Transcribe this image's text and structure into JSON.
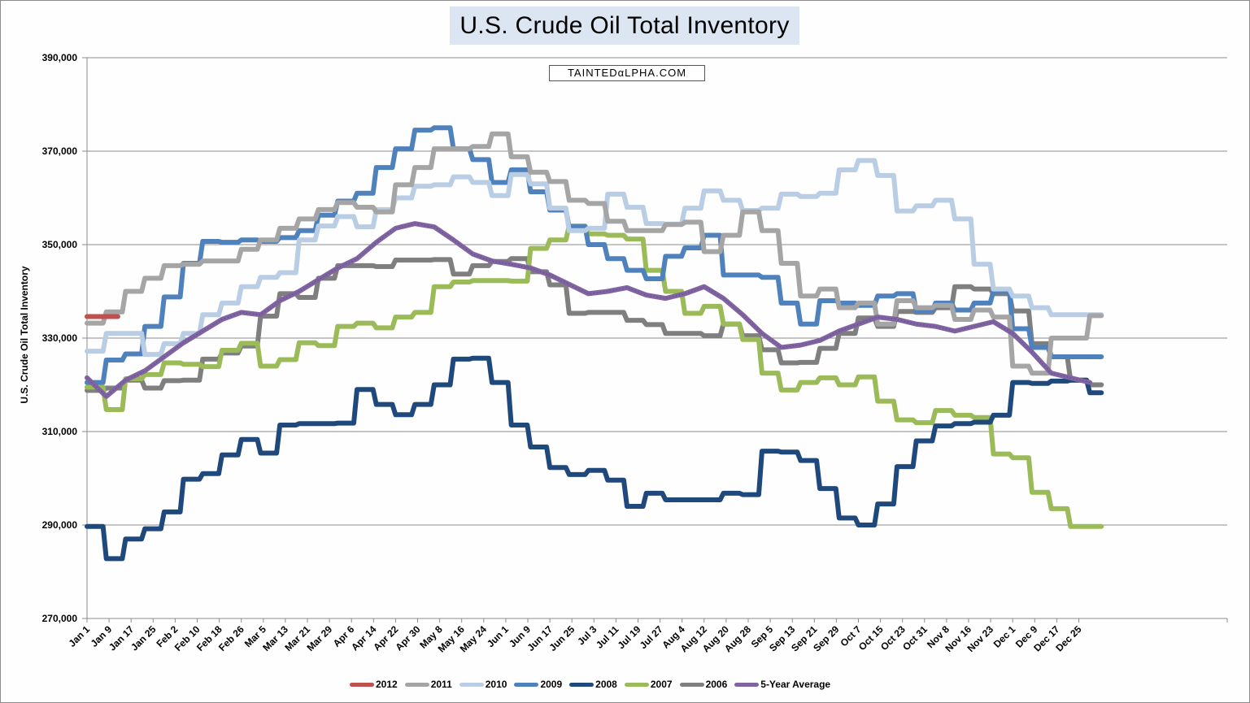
{
  "chart_data": {
    "type": "line",
    "title": "U.S. Crude Oil Total Inventory",
    "watermark": "TAINTEDαLPHA.COM",
    "xlabel": "",
    "ylabel": "U.S. Crude Oil Total Inventory",
    "ylim": [
      270000,
      390000
    ],
    "yticks": [
      270000,
      290000,
      310000,
      330000,
      350000,
      370000,
      390000
    ],
    "ytick_labels": [
      "270,000",
      "290,000",
      "310,000",
      "330,000",
      "350,000",
      "370,000",
      "390,000"
    ],
    "grid": true,
    "legend_position": "bottom",
    "x_tick_labels": [
      "Jan 1",
      "Jan 9",
      "Jan 17",
      "Jan 25",
      "Feb 2",
      "Feb 10",
      "Feb 18",
      "Feb 26",
      "Mar 5",
      "Mar 13",
      "Mar 21",
      "Mar 29",
      "Apr 6",
      "Apr 14",
      "Apr 22",
      "Apr 30",
      "May 8",
      "May 16",
      "May 24",
      "Jun 1",
      "Jun 9",
      "Jun 17",
      "Jun 25",
      "Jul 3",
      "Jul 11",
      "Jul 19",
      "Jul 27",
      "Aug 4",
      "Aug 12",
      "Aug 20",
      "Aug 28",
      "Sep 5",
      "Sep 13",
      "Sep 21",
      "Sep 29",
      "Oct 7",
      "Oct 15",
      "Oct 23",
      "Oct 31",
      "Nov 8",
      "Nov 16",
      "Nov 23",
      "Dec 1",
      "Dec 9",
      "Dec 17",
      "Dec 25"
    ],
    "x_unit": "week of year (0 = Jan 1)",
    "series": [
      {
        "name": "2012",
        "color": "#c0504d",
        "step": true,
        "x": [
          0,
          1
        ],
        "values": [
          334600,
          334600
        ]
      },
      {
        "name": "2011",
        "color": "#a5a5a5",
        "step": true,
        "x": [
          0,
          1,
          2,
          3,
          4,
          5,
          6,
          7,
          8,
          9,
          10,
          11,
          12,
          13,
          14,
          15,
          16,
          17,
          18,
          19,
          20,
          21,
          22,
          23,
          24,
          25,
          26,
          27,
          28,
          29,
          30,
          31,
          32,
          33,
          34,
          35,
          36,
          37,
          38,
          39,
          40,
          41,
          42,
          43,
          44,
          45,
          46,
          47,
          48,
          49,
          50,
          51,
          52
        ],
        "values": [
          333200,
          335600,
          340000,
          342800,
          345500,
          345800,
          346500,
          346500,
          349000,
          351000,
          353500,
          355500,
          357500,
          359000,
          358000,
          357000,
          362800,
          366500,
          370500,
          370500,
          371000,
          373700,
          368800,
          365500,
          363500,
          359500,
          358800,
          355000,
          353000,
          353000,
          354300,
          354800,
          348500,
          352000,
          357000,
          353000,
          346000,
          339000,
          340500,
          336500,
          337500,
          333000,
          338000,
          336500,
          337000,
          334000,
          336000,
          334500,
          324000,
          322500,
          330000,
          330000,
          334800
        ]
      },
      {
        "name": "2010",
        "color": "#b9cde5",
        "step": true,
        "x": [
          0,
          1,
          2,
          3,
          4,
          5,
          6,
          7,
          8,
          9,
          10,
          11,
          12,
          13,
          14,
          15,
          16,
          17,
          18,
          19,
          20,
          21,
          22,
          23,
          24,
          25,
          26,
          27,
          28,
          29,
          30,
          31,
          32,
          33,
          34,
          35,
          36,
          37,
          38,
          39,
          40,
          41,
          42,
          43,
          44,
          45,
          46,
          47,
          48,
          49,
          50,
          51,
          52
        ],
        "values": [
          327200,
          331000,
          331000,
          326500,
          328800,
          331000,
          335000,
          337500,
          341000,
          343000,
          344000,
          351000,
          354000,
          356000,
          353800,
          357500,
          360000,
          362500,
          362800,
          364500,
          363300,
          360500,
          365000,
          363000,
          357800,
          353000,
          353500,
          360800,
          358000,
          354500,
          354400,
          357800,
          361500,
          359500,
          357300,
          357800,
          360800,
          360300,
          361000,
          366000,
          368000,
          364800,
          357200,
          358300,
          359500,
          355500,
          345800,
          340500,
          339000,
          336500,
          335000,
          335000,
          335000
        ]
      },
      {
        "name": "2009",
        "color": "#4f81bd",
        "step": true,
        "x": [
          0,
          1,
          2,
          3,
          4,
          5,
          6,
          7,
          8,
          9,
          10,
          11,
          12,
          13,
          14,
          15,
          16,
          17,
          18,
          19,
          20,
          21,
          22,
          23,
          24,
          25,
          26,
          27,
          28,
          29,
          30,
          31,
          32,
          33,
          34,
          35,
          36,
          37,
          38,
          39,
          40,
          41,
          42,
          43,
          44,
          45,
          46,
          47,
          48,
          49,
          50,
          51,
          52
        ],
        "values": [
          320500,
          325300,
          326600,
          332500,
          338800,
          346000,
          350700,
          350500,
          351000,
          350700,
          351500,
          353000,
          356300,
          359300,
          361000,
          366500,
          370500,
          374500,
          375000,
          370500,
          368200,
          363300,
          366000,
          361300,
          357400,
          353800,
          350000,
          347000,
          344500,
          342700,
          347500,
          349300,
          352000,
          343500,
          343500,
          343000,
          337500,
          333000,
          338000,
          337500,
          337000,
          339000,
          339500,
          335800,
          337500,
          336000,
          337500,
          340000,
          332000,
          328000,
          326000,
          326000,
          326000
        ]
      },
      {
        "name": "2008",
        "color": "#1f497d",
        "step": true,
        "x": [
          0,
          1,
          2,
          3,
          4,
          5,
          6,
          7,
          8,
          9,
          10,
          11,
          12,
          13,
          14,
          15,
          16,
          17,
          18,
          19,
          20,
          21,
          22,
          23,
          24,
          25,
          26,
          27,
          28,
          29,
          30,
          31,
          32,
          33,
          34,
          35,
          36,
          37,
          38,
          39,
          40,
          41,
          42,
          43,
          44,
          45,
          46,
          47,
          48,
          49,
          50,
          51,
          52
        ],
        "values": [
          289700,
          282800,
          287000,
          289200,
          292800,
          299800,
          301000,
          305000,
          308300,
          305400,
          311400,
          311700,
          311700,
          311800,
          319000,
          315800,
          313600,
          315800,
          320000,
          325500,
          325700,
          320500,
          311400,
          306700,
          302300,
          300800,
          301700,
          299600,
          294000,
          296800,
          295400,
          295400,
          295400,
          296800,
          296500,
          305800,
          305600,
          303800,
          297800,
          291500,
          290000,
          294500,
          302500,
          308000,
          311200,
          311700,
          312000,
          313500,
          320500,
          320300,
          320800,
          321000,
          318300
        ]
      },
      {
        "name": "2007",
        "color": "#9bbb59",
        "step": true,
        "x": [
          0,
          1,
          2,
          3,
          4,
          5,
          6,
          7,
          8,
          9,
          10,
          11,
          12,
          13,
          14,
          15,
          16,
          17,
          18,
          19,
          20,
          21,
          22,
          23,
          24,
          25,
          26,
          27,
          28,
          29,
          30,
          31,
          32,
          33,
          34,
          35,
          36,
          37,
          38,
          39,
          40,
          41,
          42,
          43,
          44,
          45,
          46,
          47,
          48,
          49,
          50,
          51,
          52
        ],
        "values": [
          319500,
          314700,
          321300,
          322200,
          324700,
          324400,
          323900,
          327400,
          328900,
          324000,
          325400,
          329000,
          328400,
          332500,
          333200,
          332200,
          334500,
          335500,
          341000,
          342000,
          342300,
          342300,
          342200,
          349200,
          351000,
          354000,
          352300,
          352000,
          351200,
          344500,
          340000,
          335300,
          336800,
          333000,
          329700,
          322500,
          318900,
          320500,
          321500,
          320000,
          321700,
          316500,
          312500,
          311900,
          314500,
          313500,
          313000,
          305200,
          304400,
          297000,
          293500,
          289700,
          289700
        ]
      },
      {
        "name": "2006",
        "color": "#7f7f7f",
        "step": true,
        "x": [
          0,
          1,
          2,
          3,
          4,
          5,
          6,
          7,
          8,
          9,
          10,
          11,
          12,
          13,
          14,
          15,
          16,
          17,
          18,
          19,
          20,
          21,
          22,
          23,
          24,
          25,
          26,
          27,
          28,
          29,
          30,
          31,
          32,
          33,
          34,
          35,
          36,
          37,
          38,
          39,
          40,
          41,
          42,
          43,
          44,
          45,
          46,
          47,
          48,
          49,
          50,
          51,
          52
        ],
        "values": [
          318800,
          319300,
          321000,
          319300,
          320900,
          321000,
          325500,
          326800,
          328300,
          334700,
          339500,
          338700,
          342800,
          345500,
          345500,
          345300,
          346700,
          346700,
          346800,
          343700,
          345500,
          346400,
          347000,
          344200,
          341400,
          335300,
          335500,
          335500,
          333800,
          332900,
          331000,
          331000,
          330500,
          333000,
          330500,
          327500,
          324700,
          324800,
          327800,
          331000,
          334300,
          332500,
          335700,
          335500,
          336500,
          341000,
          340500,
          339500,
          335800,
          328800,
          326000,
          321000,
          320000
        ]
      },
      {
        "name": "5-Year Average",
        "color": "#8064a2",
        "dotted": true,
        "step": false,
        "x": [
          0,
          1,
          2,
          3,
          4,
          5,
          6,
          7,
          8,
          9,
          10,
          11,
          12,
          13,
          14,
          15,
          16,
          17,
          18,
          19,
          20,
          21,
          22,
          23,
          24,
          25,
          26,
          27,
          28,
          29,
          30,
          31,
          32,
          33,
          34,
          35,
          36,
          37,
          38,
          39,
          40,
          41,
          42,
          43,
          44,
          45,
          46,
          47,
          48,
          49,
          50,
          51,
          52
        ],
        "values": [
          321500,
          317500,
          321000,
          323000,
          326000,
          329000,
          331500,
          334000,
          335500,
          335000,
          338000,
          340000,
          342500,
          345000,
          347000,
          350500,
          353500,
          354500,
          353800,
          351000,
          348000,
          346500,
          345800,
          345000,
          343500,
          341500,
          339500,
          340000,
          340800,
          339200,
          338500,
          339500,
          341000,
          338500,
          335000,
          331000,
          328000,
          328500,
          329500,
          331500,
          333000,
          334500,
          334000,
          333000,
          332500,
          331500,
          332500,
          333500,
          331000,
          327000,
          322500,
          321500,
          320500
        ]
      }
    ]
  }
}
